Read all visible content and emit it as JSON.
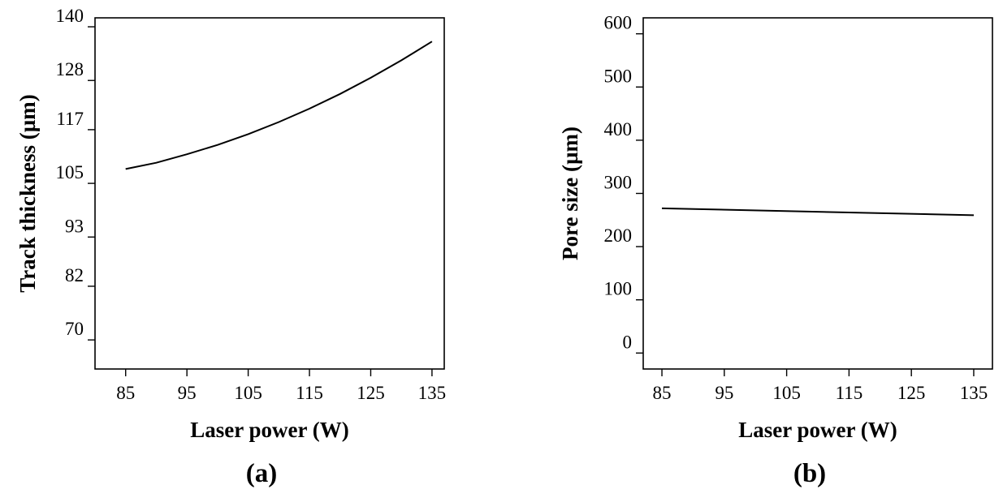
{
  "chart_data": [
    {
      "type": "line",
      "panel_label": "(a)",
      "xlabel": "Laser power (W)",
      "ylabel": "Track thickness  (µm)",
      "xlim": [
        80,
        137
      ],
      "ylim": [
        63.5,
        142
      ],
      "x_ticks": [
        "85",
        "95",
        "105",
        "115",
        "125",
        "135"
      ],
      "y_ticks": [
        "70",
        "82",
        "93",
        "105",
        "117",
        "128",
        "140"
      ],
      "grid": false,
      "series": [
        {
          "x": [
            85,
            90,
            95,
            100,
            105,
            110,
            115,
            120,
            125,
            130,
            135
          ],
          "y": [
            108.2,
            109.6,
            111.5,
            113.6,
            116.0,
            118.7,
            121.7,
            125.0,
            128.6,
            132.5,
            136.7
          ]
        }
      ]
    },
    {
      "type": "line",
      "panel_label": "(b)",
      "xlabel": "Laser power (W)",
      "ylabel": "Pore size  (µm)",
      "xlim": [
        82,
        138
      ],
      "ylim": [
        -30,
        630
      ],
      "x_ticks": [
        "85",
        "95",
        "105",
        "115",
        "125",
        "135"
      ],
      "y_ticks": [
        "0",
        "100",
        "200",
        "300",
        "400",
        "500",
        "600"
      ],
      "grid": false,
      "series": [
        {
          "x": [
            85,
            135
          ],
          "y": [
            272,
            259
          ]
        }
      ]
    }
  ]
}
